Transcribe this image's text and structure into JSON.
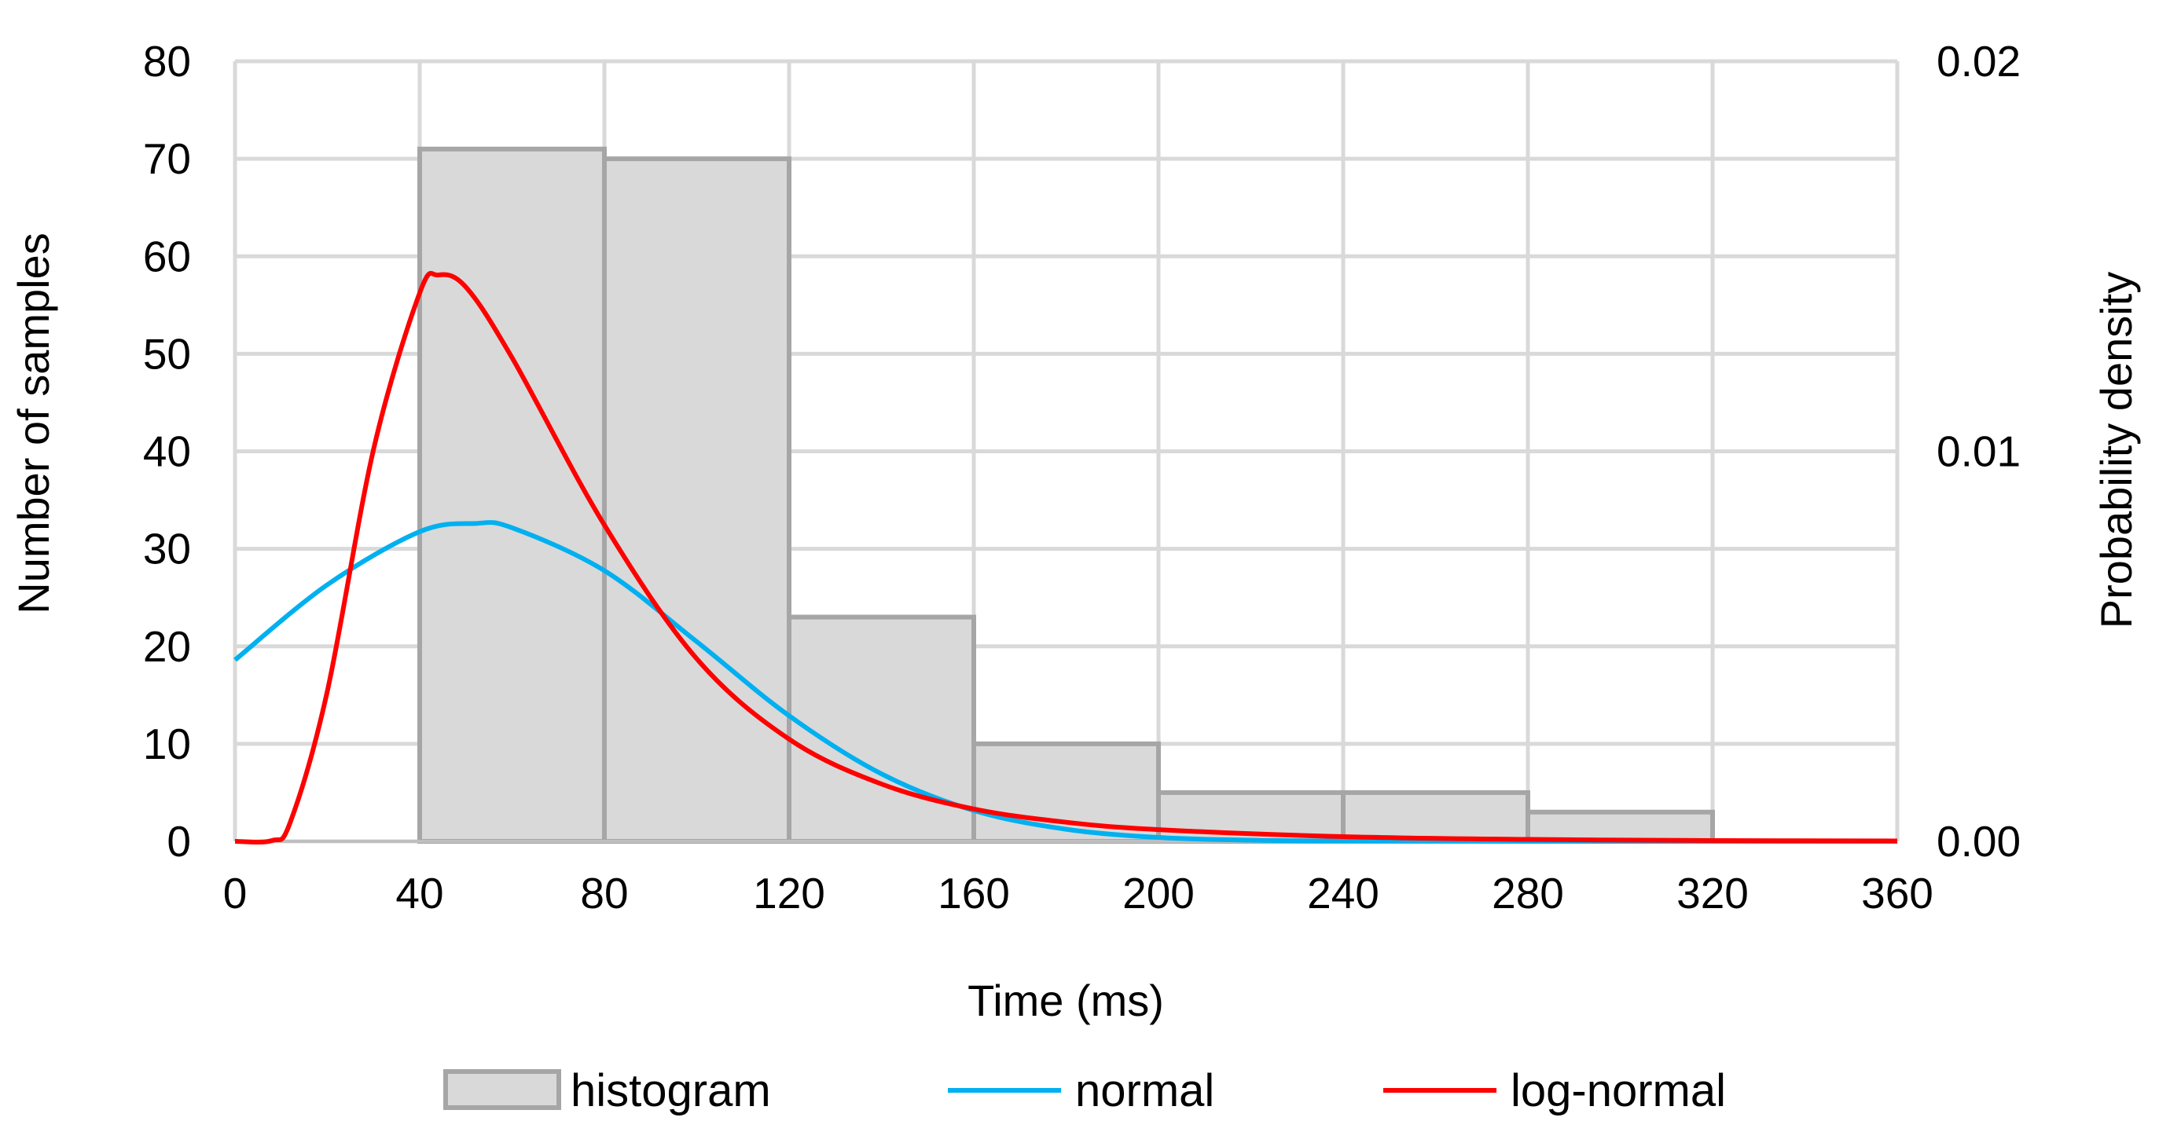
{
  "chart_data": {
    "type": "bar",
    "title": "",
    "xlabel": "Time (ms)",
    "ylabel": "Number of samples",
    "y2label": "Probability density",
    "xlim": [
      0,
      360
    ],
    "ylim": [
      0,
      80
    ],
    "y2lim": [
      0,
      0.02
    ],
    "x_ticks": [
      "0",
      "40",
      "80",
      "120",
      "160",
      "200",
      "240",
      "280",
      "320",
      "360"
    ],
    "y_ticks": [
      "0",
      "10",
      "20",
      "30",
      "40",
      "50",
      "60",
      "70",
      "80"
    ],
    "y2_ticks": [
      "0.00",
      "0.01",
      "0.02"
    ],
    "grid": true,
    "legend_position": "bottom",
    "histogram": {
      "name": "histogram",
      "color": "#d9d9d9",
      "edge_color": "#a6a6a6",
      "bins": [
        {
          "from": 40,
          "to": 80,
          "value": 71
        },
        {
          "from": 80,
          "to": 120,
          "value": 70
        },
        {
          "from": 120,
          "to": 160,
          "value": 23
        },
        {
          "from": 160,
          "to": 200,
          "value": 10
        },
        {
          "from": 200,
          "to": 240,
          "value": 5
        },
        {
          "from": 240,
          "to": 280,
          "value": 5
        },
        {
          "from": 280,
          "to": 320,
          "value": 3
        }
      ]
    },
    "series": [
      {
        "name": "normal",
        "type": "line",
        "axis": "y2",
        "color": "#00b0f0",
        "points": [
          [
            0,
            0.00465
          ],
          [
            20,
            0.00658
          ],
          [
            40,
            0.00794
          ],
          [
            52,
            0.00815
          ],
          [
            60,
            0.00804
          ],
          [
            80,
            0.00694
          ],
          [
            100,
            0.00512
          ],
          [
            120,
            0.00322
          ],
          [
            140,
            0.00173
          ],
          [
            160,
            0.00079
          ],
          [
            180,
            0.00031
          ],
          [
            200,
            0.0001
          ],
          [
            220,
            3e-05
          ],
          [
            240,
            1e-05
          ],
          [
            280,
            0.0
          ],
          [
            360,
            0.0
          ]
        ]
      },
      {
        "name": "log-normal",
        "type": "line",
        "axis": "y2",
        "color": "#ff0000",
        "points": [
          [
            0,
            0.0
          ],
          [
            8,
            2e-05
          ],
          [
            12,
            0.0005
          ],
          [
            20,
            0.00385
          ],
          [
            30,
            0.01005
          ],
          [
            40,
            0.01406
          ],
          [
            44,
            0.01452
          ],
          [
            50,
            0.01421
          ],
          [
            60,
            0.0124
          ],
          [
            80,
            0.00811
          ],
          [
            100,
            0.00468
          ],
          [
            120,
            0.00262
          ],
          [
            140,
            0.00147
          ],
          [
            160,
            0.00083
          ],
          [
            180,
            0.00049
          ],
          [
            200,
            0.0003
          ],
          [
            240,
            0.00012
          ],
          [
            280,
            5e-05
          ],
          [
            320,
            2e-05
          ],
          [
            360,
            1e-05
          ]
        ]
      }
    ]
  }
}
